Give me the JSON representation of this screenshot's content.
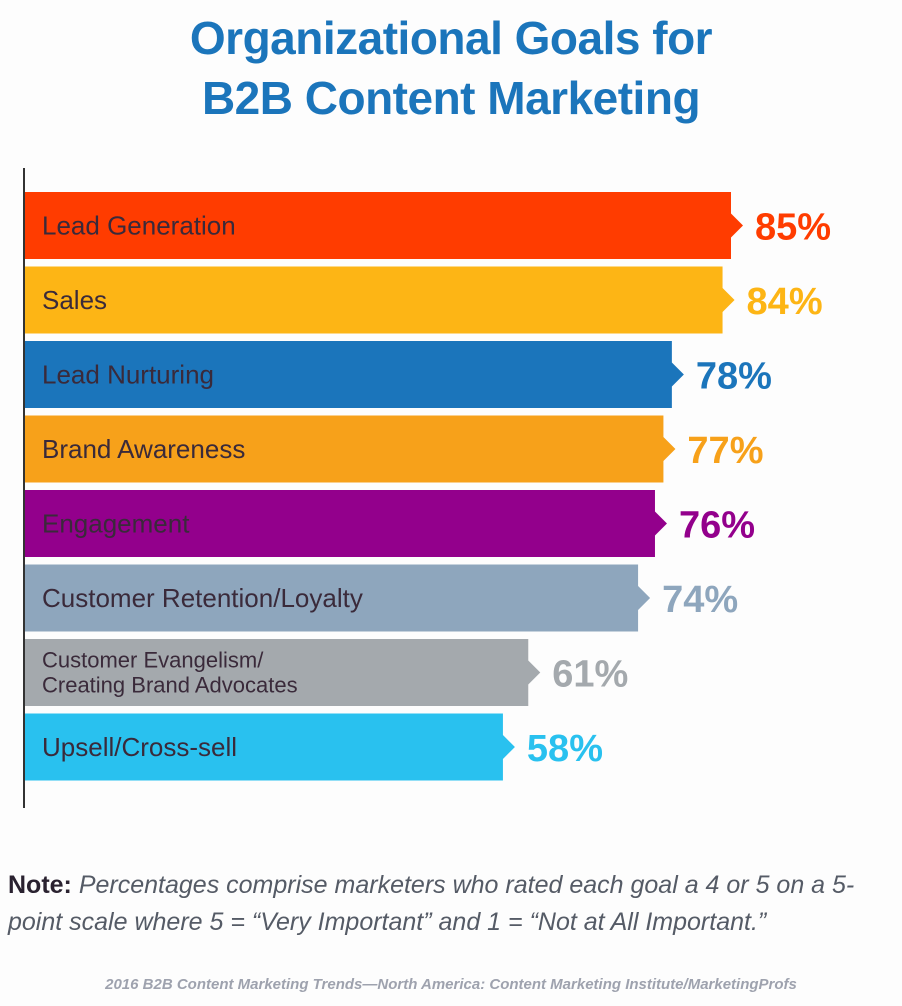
{
  "chart_data": {
    "type": "bar",
    "orientation": "horizontal",
    "title": "Organizational Goals for B2B Content Marketing",
    "title_lines": [
      "Organizational Goals for",
      "B2B Content Marketing"
    ],
    "xlabel": "",
    "ylabel": "",
    "xlim": [
      0,
      100
    ],
    "grid": false,
    "legend": "none",
    "categories": [
      "Lead Generation",
      "Sales",
      "Lead Nurturing",
      "Brand Awareness",
      "Engagement",
      "Customer Retention/Loyalty",
      "Customer Evangelism/ Creating Brand Advocates",
      "Upsell/Cross-sell"
    ],
    "category_lines": [
      [
        "Lead Generation"
      ],
      [
        "Sales"
      ],
      [
        "Lead Nurturing"
      ],
      [
        "Brand Awareness"
      ],
      [
        "Engagement"
      ],
      [
        "Customer Retention/Loyalty"
      ],
      [
        "Customer Evangelism/",
        "Creating Brand Advocates"
      ],
      [
        "Upsell/Cross-sell"
      ]
    ],
    "values": [
      85,
      84,
      78,
      77,
      76,
      74,
      61,
      58
    ],
    "value_labels": [
      "85%",
      "84%",
      "78%",
      "77%",
      "76%",
      "74%",
      "61%",
      "58%"
    ],
    "colors": [
      "#ff3c00",
      "#fdb515",
      "#1b75bb",
      "#f7a11a",
      "#93008c",
      "#8ea6bd",
      "#a4a9ad",
      "#29c1ef"
    ]
  },
  "note": {
    "label": "Note:",
    "text": " Percentages comprise marketers who rated each goal a 4 or 5 on a 5-point scale where 5 = “Very Important” and 1 = “Not at All Important.”"
  },
  "source": "2016 B2B Content Marketing Trends—North America: Content Marketing Institute/MarketingProfs"
}
